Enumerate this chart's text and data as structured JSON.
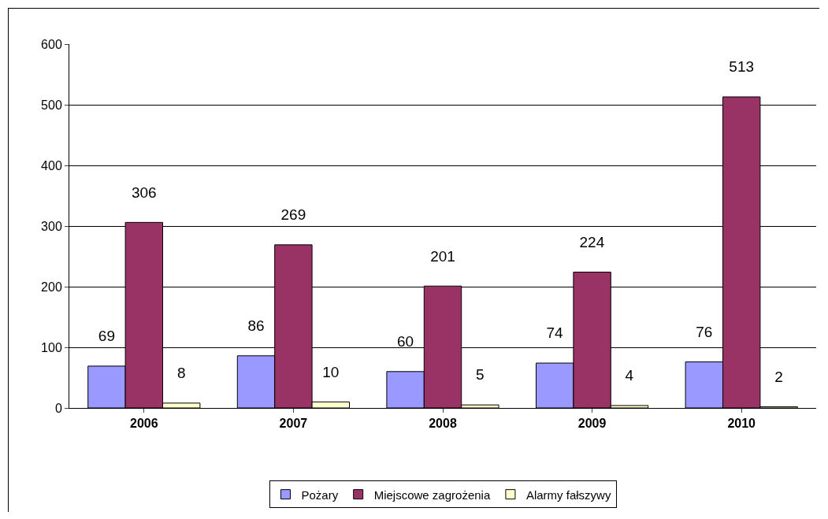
{
  "chart_data": {
    "type": "bar",
    "categories": [
      "2006",
      "2007",
      "2008",
      "2009",
      "2010"
    ],
    "series": [
      {
        "name": "Pożary",
        "color": "#9999ff",
        "values": [
          69,
          86,
          60,
          74,
          76
        ]
      },
      {
        "name": "Miejscowe zagrożenia",
        "color": "#993366",
        "values": [
          306,
          269,
          201,
          224,
          513
        ]
      },
      {
        "name": "Alarmy fałszywy",
        "color": "#ffffcc",
        "values": [
          8,
          10,
          5,
          4,
          2
        ]
      }
    ],
    "ylim": [
      0,
      600
    ],
    "yticks": [
      0,
      100,
      200,
      300,
      400,
      500,
      600
    ],
    "grid": "y",
    "legend": "bottom",
    "data_labels": true
  }
}
